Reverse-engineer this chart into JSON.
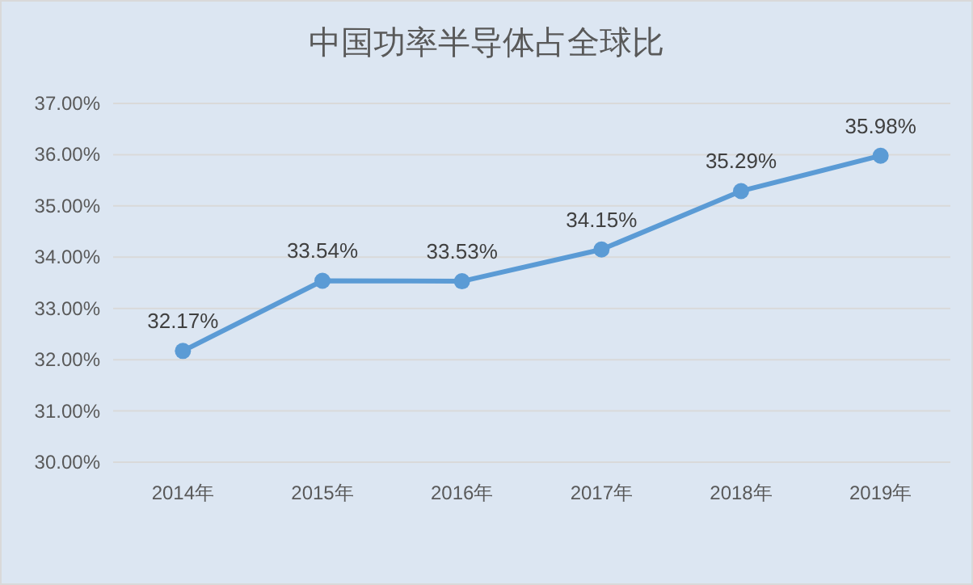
{
  "chart_data": {
    "type": "line",
    "title": "中国功率半导体占全球比",
    "categories": [
      "2014年",
      "2015年",
      "2016年",
      "2017年",
      "2018年",
      "2019年"
    ],
    "series": [
      {
        "color": "#5b9bd5",
        "values": [
          32.17,
          33.54,
          33.53,
          34.15,
          35.29,
          35.98
        ]
      }
    ],
    "value_labels": [
      "32.17%",
      "33.54%",
      "33.53%",
      "34.15%",
      "35.29%",
      "35.98%"
    ],
    "ylim": [
      30,
      37
    ],
    "yticks": [
      {
        "value": 30,
        "label": "30.00%"
      },
      {
        "value": 31,
        "label": "31.00%"
      },
      {
        "value": 32,
        "label": "32.00%"
      },
      {
        "value": 33,
        "label": "33.00%"
      },
      {
        "value": 34,
        "label": "34.00%"
      },
      {
        "value": 35,
        "label": "35.00%"
      },
      {
        "value": 36,
        "label": "36.00%"
      },
      {
        "value": 37,
        "label": "37.00%"
      }
    ],
    "grid": "y",
    "marker": "circle",
    "line_style": "solid"
  }
}
